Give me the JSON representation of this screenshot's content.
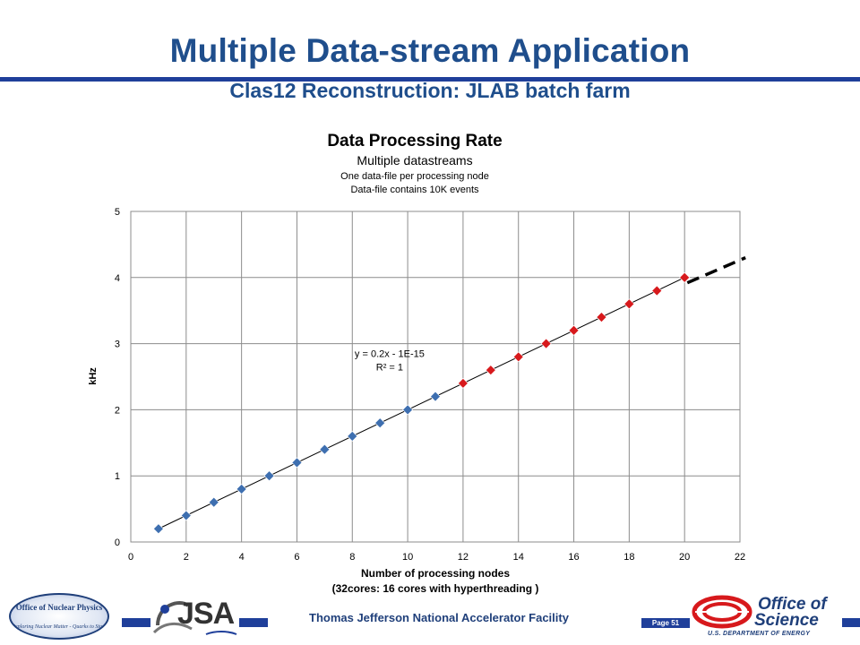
{
  "slide": {
    "title": "Multiple Data-stream Application",
    "subtitle": "Clas12 Reconstruction: JLAB batch farm"
  },
  "footer": {
    "text": "Thomas Jefferson National Accelerator Facility",
    "page": "Page 51",
    "logo_left": {
      "line1": "Office of Nuclear Physics",
      "line2": "Exploring Nuclear Matter - Quarks to Stars"
    },
    "logo_center": "JSA",
    "logo_right": {
      "line1": "Office of",
      "line2": "Science",
      "line3": "U.S. DEPARTMENT OF ENERGY"
    },
    "accent_color": "#1f3f9a"
  },
  "chart_data": {
    "type": "scatter",
    "title": "Data Processing Rate",
    "subtitle_lines": [
      "Multiple datastreams",
      "One data-file per processing node",
      "Data-file contains 10K events"
    ],
    "xlabel_lines": [
      "Number of processing nodes",
      "(32cores: 16 cores with hyperthreading )"
    ],
    "ylabel": "kHz",
    "xlim": [
      0,
      22
    ],
    "ylim": [
      0,
      5
    ],
    "x_ticks": [
      0,
      2,
      4,
      6,
      8,
      10,
      12,
      14,
      16,
      18,
      20,
      22
    ],
    "y_ticks": [
      0,
      1,
      2,
      3,
      4,
      5
    ],
    "grid": true,
    "series": [
      {
        "color": "#3e6fb0",
        "marker": "diamond",
        "x": [
          1,
          2,
          3,
          4,
          5,
          6,
          7,
          8,
          9,
          10,
          11
        ],
        "y": [
          0.2,
          0.4,
          0.6,
          0.8,
          1.0,
          1.2,
          1.4,
          1.6,
          1.8,
          2.0,
          2.2
        ]
      },
      {
        "color": "#d7191c",
        "marker": "diamond",
        "x": [
          12,
          13,
          14,
          15,
          16,
          17,
          18,
          19,
          20
        ],
        "y": [
          2.4,
          2.6,
          2.8,
          3.0,
          3.2,
          3.4,
          3.6,
          3.8,
          4.0
        ]
      }
    ],
    "trendline": {
      "slope": 0.2,
      "intercept": 0,
      "x_range": [
        1,
        20
      ],
      "label_equation": "y = 0.2x - 1E-15",
      "label_r2": "R² = 1",
      "label_at": [
        8.7,
        2.85
      ]
    },
    "extrapolation": {
      "style": "dashed",
      "x_range": [
        20.1,
        22.2
      ],
      "y_range": [
        3.92,
        4.3
      ]
    }
  }
}
